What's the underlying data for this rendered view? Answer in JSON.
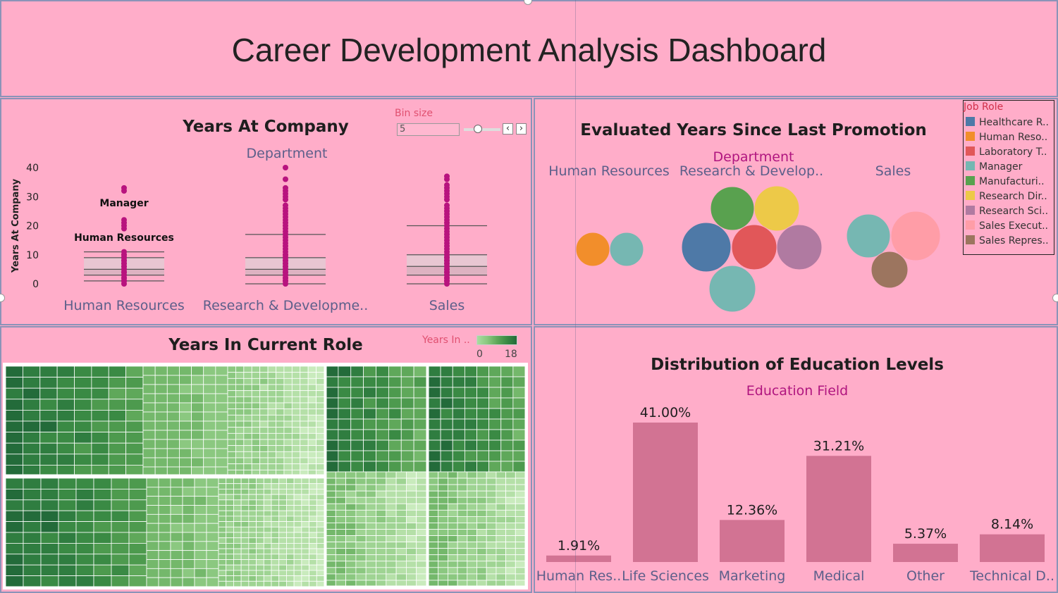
{
  "dashboard_title": "Career Development Analysis Dashboard",
  "controls": {
    "bin_label": "Bin size",
    "bin_value": "5",
    "prev_icon": "chevron-left-icon",
    "next_icon": "chevron-right-icon"
  },
  "colors": {
    "background": "#ffadc9",
    "dot": "#b8137e",
    "bar": "#d27393",
    "label": "#5c5f8a",
    "accent": "#b0157f"
  },
  "chart_data": [
    {
      "type": "scatter",
      "title": "Years At Company",
      "column_header": "Department",
      "ylabel": "Years At Company",
      "ylim": [
        0,
        40
      ],
      "yticks": [
        0,
        10,
        20,
        30,
        40
      ],
      "categories": [
        "Human Resources",
        "Research & Developme..",
        "Sales"
      ],
      "annotations": [
        "Manager",
        "Human Resources"
      ],
      "points": {
        "Human Resources": [
          0,
          1,
          1,
          2,
          2,
          3,
          3,
          4,
          4,
          5,
          5,
          6,
          6,
          7,
          7,
          8,
          8,
          9,
          9,
          10,
          10,
          11,
          19,
          20,
          21,
          22,
          32,
          33
        ],
        "Research & Developme..": [
          0,
          1,
          1,
          2,
          2,
          3,
          3,
          4,
          4,
          5,
          5,
          6,
          6,
          7,
          7,
          8,
          8,
          9,
          9,
          10,
          10,
          11,
          12,
          13,
          14,
          15,
          16,
          17,
          18,
          19,
          20,
          21,
          22,
          23,
          24,
          25,
          26,
          27,
          29,
          30,
          31,
          32,
          33,
          36,
          40
        ],
        "Sales": [
          0,
          1,
          1,
          2,
          2,
          3,
          3,
          4,
          4,
          5,
          5,
          6,
          6,
          7,
          7,
          8,
          8,
          9,
          9,
          10,
          10,
          11,
          12,
          13,
          14,
          15,
          16,
          17,
          18,
          19,
          20,
          21,
          22,
          23,
          24,
          25,
          26,
          27,
          29,
          30,
          31,
          32,
          33,
          34,
          36,
          37
        ]
      },
      "boxplots": [
        {
          "category": "Human Resources",
          "whisker_low": 1,
          "q1": 3,
          "median": 5,
          "q3": 9,
          "whisker_high": 11
        },
        {
          "category": "Research & Developme..",
          "whisker_low": 0,
          "q1": 3,
          "median": 5,
          "q3": 9,
          "whisker_high": 17
        },
        {
          "category": "Sales",
          "whisker_low": 0,
          "q1": 3,
          "median": 6,
          "q3": 10,
          "whisker_high": 20
        }
      ]
    },
    {
      "type": "bubble",
      "title": "Evaluated Years Since Last Promotion",
      "column_header": "Department",
      "legend_title": "Job Role",
      "categories": [
        "Human Resources",
        "Research & Develop..",
        "Sales"
      ],
      "legend": [
        {
          "name": "Healthcare R..",
          "color": "#4e79a7"
        },
        {
          "name": "Human Reso..",
          "color": "#f28e2b"
        },
        {
          "name": "Laboratory T..",
          "color": "#e15759"
        },
        {
          "name": "Manager",
          "color": "#76b7b2"
        },
        {
          "name": "Manufacturi..",
          "color": "#59a14f"
        },
        {
          "name": "Research Dir..",
          "color": "#edc948"
        },
        {
          "name": "Research Sci..",
          "color": "#b07aa1"
        },
        {
          "name": "Sales Execut..",
          "color": "#ff9da7"
        },
        {
          "name": "Sales Repres..",
          "color": "#9c755f"
        }
      ],
      "bubbles": [
        {
          "department": "Human Resources",
          "role": "Human Reso..",
          "size": 24
        },
        {
          "department": "Human Resources",
          "role": "Manager",
          "size": 24
        },
        {
          "department": "Research & Develop..",
          "role": "Healthcare R..",
          "size": 35
        },
        {
          "department": "Research & Develop..",
          "role": "Manufacturi..",
          "size": 31
        },
        {
          "department": "Research & Develop..",
          "role": "Research Dir..",
          "size": 32
        },
        {
          "department": "Research & Develop..",
          "role": "Laboratory T..",
          "size": 32
        },
        {
          "department": "Research & Develop..",
          "role": "Research Sci..",
          "size": 32
        },
        {
          "department": "Research & Develop..",
          "role": "Manager",
          "size": 33
        },
        {
          "department": "Sales",
          "role": "Manager",
          "size": 31
        },
        {
          "department": "Sales",
          "role": "Sales Execut..",
          "size": 35
        },
        {
          "department": "Sales",
          "role": "Sales Repres..",
          "size": 26
        }
      ]
    },
    {
      "type": "treemap",
      "title": "Years In Current Role",
      "legend_label": "Years In ..",
      "color_range": [
        0,
        18
      ],
      "groups": [
        {
          "name": "group-1",
          "weight": 900
        },
        {
          "name": "group-2",
          "weight": 900
        },
        {
          "name": "group-3",
          "weight": 440
        },
        {
          "name": "group-4",
          "weight": 440
        }
      ]
    },
    {
      "type": "bar",
      "title": "Distribution of Education Levels",
      "column_header": "Education Field",
      "categories": [
        "Human Res..",
        "Life Sciences",
        "Marketing",
        "Medical",
        "Other",
        "Technical D.."
      ],
      "values": [
        1.91,
        41.0,
        12.36,
        31.21,
        5.37,
        8.14
      ],
      "labels": [
        "1.91%",
        "41.00%",
        "12.36%",
        "31.21%",
        "5.37%",
        "8.14%"
      ],
      "ylim": [
        0,
        41
      ]
    }
  ]
}
